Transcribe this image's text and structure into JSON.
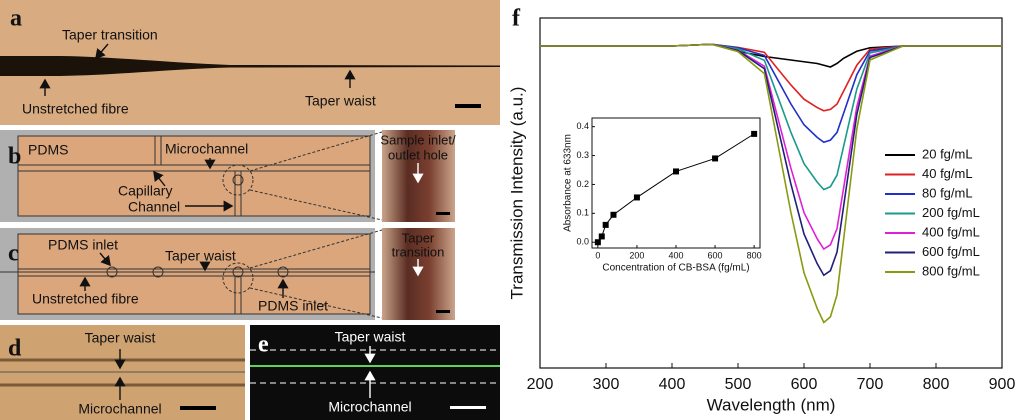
{
  "panels": {
    "a": {
      "letter": "a",
      "labels": [
        "Taper transition",
        "Unstretched fibre",
        "Taper waist"
      ]
    },
    "b": {
      "letter": "b",
      "labels": [
        "PDMS",
        "Microchannel",
        [
          "Capillary",
          "Channel"
        ],
        [
          "Sample inlet/",
          "outlet hole"
        ]
      ]
    },
    "c": {
      "letter": "c",
      "labels": [
        "PDMS inlet",
        "Taper waist",
        "Unstretched fibre",
        "PDMS inlet",
        [
          "Taper",
          "transition"
        ]
      ]
    },
    "d": {
      "letter": "d",
      "labels": [
        "Taper waist",
        "Microchannel"
      ]
    },
    "e": {
      "letter": "e",
      "labels": [
        "Taper waist",
        "Microchannel"
      ]
    },
    "f": {
      "letter": "f"
    }
  },
  "chart_data": [
    {
      "type": "line",
      "xlabel": "Wavelength (nm)",
      "ylabel": "Transmission Intensity (a.u.)",
      "xlim": [
        200,
        900
      ],
      "xticks": [
        200,
        300,
        400,
        500,
        600,
        700,
        800,
        900
      ],
      "ylim": [
        0,
        1
      ],
      "legend": "right",
      "x": [
        200,
        300,
        400,
        460,
        500,
        540,
        560,
        580,
        600,
        620,
        630,
        640,
        650,
        660,
        680,
        700,
        750,
        800,
        900
      ],
      "series": [
        {
          "name": "20 fg/mL",
          "color": "#000000",
          "values": [
            0.92,
            0.92,
            0.92,
            0.925,
            0.905,
            0.89,
            0.885,
            0.88,
            0.875,
            0.87,
            0.865,
            0.86,
            0.87,
            0.885,
            0.905,
            0.915,
            0.92,
            0.92,
            0.92
          ]
        },
        {
          "name": "40 fg/mL",
          "color": "#e02020",
          "values": [
            0.92,
            0.92,
            0.92,
            0.925,
            0.916,
            0.902,
            0.855,
            0.809,
            0.768,
            0.744,
            0.735,
            0.739,
            0.754,
            0.791,
            0.865,
            0.911,
            0.92,
            0.92,
            0.92
          ]
        },
        {
          "name": "80 fg/mL",
          "color": "#2030c8",
          "values": [
            0.92,
            0.92,
            0.92,
            0.925,
            0.915,
            0.893,
            0.824,
            0.755,
            0.695,
            0.659,
            0.645,
            0.651,
            0.673,
            0.728,
            0.838,
            0.906,
            0.92,
            0.92,
            0.92
          ]
        },
        {
          "name": "200 fg/mL",
          "color": "#1a9a8a",
          "values": [
            0.92,
            0.92,
            0.92,
            0.925,
            0.912,
            0.879,
            0.777,
            0.674,
            0.584,
            0.531,
            0.51,
            0.518,
            0.551,
            0.633,
            0.797,
            0.9,
            0.92,
            0.92,
            0.92
          ]
        },
        {
          "name": "400 fg/mL",
          "color": "#e020d8",
          "values": [
            0.92,
            0.92,
            0.92,
            0.925,
            0.908,
            0.862,
            0.717,
            0.572,
            0.444,
            0.369,
            0.34,
            0.352,
            0.398,
            0.514,
            0.746,
            0.891,
            0.92,
            0.92,
            0.92
          ]
        },
        {
          "name": "600 fg/mL",
          "color": "#202078",
          "values": [
            0.92,
            0.92,
            0.92,
            0.925,
            0.907,
            0.855,
            0.691,
            0.527,
            0.383,
            0.298,
            0.265,
            0.278,
            0.331,
            0.462,
            0.724,
            0.887,
            0.92,
            0.92,
            0.92
          ]
        },
        {
          "name": "800 fg/mL",
          "color": "#8a9a10",
          "values": [
            0.92,
            0.92,
            0.92,
            0.925,
            0.904,
            0.841,
            0.644,
            0.446,
            0.272,
            0.17,
            0.13,
            0.146,
            0.209,
            0.367,
            0.683,
            0.88,
            0.92,
            0.92,
            0.92
          ]
        }
      ]
    },
    {
      "type": "scatter-line",
      "xlabel": "Concentration of CB-BSA (fg/mL)",
      "ylabel": "Absorbance at 633nm",
      "xlim": [
        -30,
        830
      ],
      "xticks": [
        0,
        200,
        400,
        600,
        800
      ],
      "ylim": [
        -0.02,
        0.43
      ],
      "yticks": [
        {
          "value": 0,
          "label": "0.0"
        },
        0.1,
        0.2,
        0.3,
        0.4
      ],
      "color": "#000000",
      "x": [
        0,
        20,
        40,
        80,
        200,
        400,
        600,
        800
      ],
      "values": [
        0.0,
        0.02,
        0.06,
        0.095,
        0.155,
        0.245,
        0.29,
        0.375
      ]
    }
  ]
}
